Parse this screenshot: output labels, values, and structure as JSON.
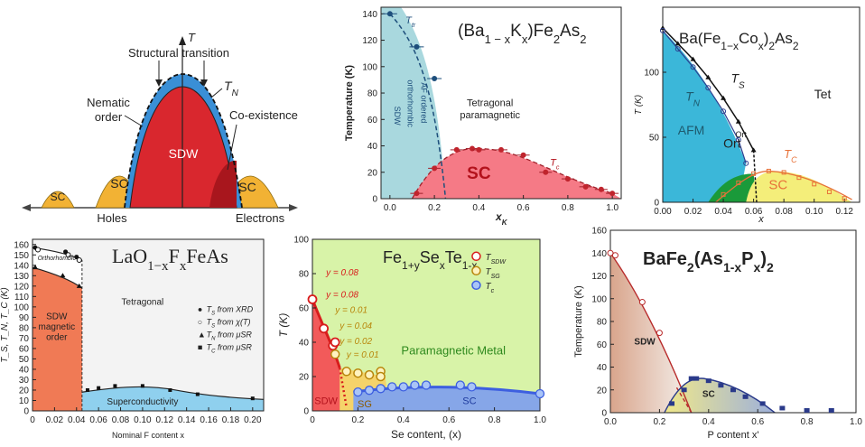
{
  "colors": {
    "sdw_red": "#d9272e",
    "afm_blue": "#3a8fd6",
    "sc_gold": "#f2b234",
    "teal": "#a9d8de",
    "pink": "#f57a86",
    "afm_cyan": "#3bb7d9",
    "ort_green": "#1a9a3a",
    "sc_yellow": "#f4ee7a",
    "orange_sdw": "#f07a55",
    "light_blue": "#8fd0ee",
    "para_green": "#d8f3a8",
    "sdw_tan": "#e8c7b0"
  },
  "chart_data": [
    {
      "id": "schematic",
      "type": "schematic",
      "labels": {
        "t_axis": "T",
        "structural": "Structural transition",
        "tn": "T",
        "tn_sub": "N",
        "nematic_1": "Nematic",
        "nematic_2": "order",
        "coexist": "Co-existence",
        "sdw": "SDW",
        "sc_center_left": "SC",
        "sc_center_right": "SC",
        "sc_far_left": "SC",
        "sc_far_right": "SC",
        "holes": "Holes",
        "electrons": "Electrons"
      }
    },
    {
      "id": "ba_k",
      "type": "scatter",
      "title": "(Ba",
      "title_sub1": "1 − x",
      "title_mid": "K",
      "title_sub2": "x",
      "title_end": ")Fe",
      "title_sub3": "2",
      "title_end2": "As",
      "title_sub4": "2",
      "xlabel": "x",
      "xlabel_sub": "K",
      "ylabel": "Temperature (K)",
      "xlim": [
        0,
        1.0
      ],
      "ylim": [
        0,
        145
      ],
      "xticks": [
        "0.0",
        "0.2",
        "0.4",
        "0.6",
        "0.8",
        "1.0"
      ],
      "yticks": [
        "0",
        "20",
        "40",
        "60",
        "80",
        "100",
        "120",
        "140"
      ],
      "series": [
        {
          "name": "Ttr",
          "x": [
            0.0,
            0.12,
            0.2
          ],
          "y": [
            140,
            115,
            91
          ]
        },
        {
          "name": "Tc",
          "x": [
            0.12,
            0.2,
            0.3,
            0.37,
            0.4,
            0.5,
            0.6,
            0.7,
            0.8,
            0.88,
            0.95,
            1.0
          ],
          "y": [
            4,
            23,
            37,
            38,
            37,
            37,
            33,
            20,
            15,
            9,
            7,
            4
          ]
        }
      ],
      "labels": {
        "ttr": "T",
        "ttr_sub": "tr",
        "region_1": "SDW",
        "region_2": "orthorhombic",
        "region_3": "AF ordered",
        "tetra_1": "Tetragonal",
        "tetra_2": "paramagnetic",
        "sc": "SC",
        "tc": "T",
        "tc_sub": "c"
      }
    },
    {
      "id": "ba_co",
      "type": "scatter",
      "title": "Ba(Fe",
      "title_sub1": "1−x",
      "title_mid": "Co",
      "title_sub2": "x",
      "title_end": ")",
      "title_sub3": "2",
      "title_end2": "As",
      "title_sub4": "2",
      "xlabel": "x",
      "ylabel": "T (K)",
      "xlim": [
        0,
        0.13
      ],
      "ylim": [
        0,
        150
      ],
      "xticks": [
        "0.00",
        "0.02",
        "0.04",
        "0.06",
        "0.08",
        "0.10",
        "0.12"
      ],
      "yticks": [
        "0",
        "50",
        "100"
      ],
      "series": [
        {
          "name": "TS",
          "x": [
            0.0,
            0.01,
            0.02,
            0.03,
            0.04,
            0.05,
            0.06
          ],
          "y": [
            134,
            122,
            110,
            96,
            80,
            62,
            40
          ]
        },
        {
          "name": "TN",
          "x": [
            0.0,
            0.01,
            0.02,
            0.03,
            0.04,
            0.05,
            0.055
          ],
          "y": [
            132,
            118,
            104,
            88,
            70,
            48,
            30
          ]
        },
        {
          "name": "TC",
          "x": [
            0.04,
            0.05,
            0.06,
            0.07,
            0.08,
            0.09,
            0.1,
            0.11,
            0.12
          ],
          "y": [
            6,
            15,
            22,
            24,
            23,
            19,
            14,
            8,
            3
          ]
        }
      ],
      "labels": {
        "ts": "T",
        "ts_sub": "S",
        "tn": "T",
        "tn_sub": "N",
        "tet": "Tet",
        "afm": "AFM",
        "ort": "Ort",
        "ort_small": "Ort",
        "tc": "T",
        "tc_sub": "C",
        "sc": "SC"
      }
    },
    {
      "id": "lao",
      "type": "scatter",
      "title": "LaO",
      "title_sub1": "1−x",
      "title_mid": "F",
      "title_sub2": "x",
      "title_end": "FeAs",
      "xlabel": "Nominal F content x",
      "ylabel": "T_S, T_N, T_C (K)",
      "xlim": [
        0,
        0.21
      ],
      "ylim": [
        0,
        165
      ],
      "xticks": [
        "0",
        "0.02",
        "0.04",
        "0.06",
        "0.08",
        "0.10",
        "0.12",
        "0.14",
        "0.16",
        "0.18",
        "0.20"
      ],
      "yticks": [
        "0",
        "10",
        "20",
        "30",
        "40",
        "50",
        "60",
        "70",
        "80",
        "90",
        "100",
        "110",
        "120",
        "130",
        "140",
        "150",
        "160"
      ],
      "series": [
        {
          "name": "TS_XRD",
          "x": [
            0.0,
            0.03,
            0.04
          ],
          "y": [
            157,
            153,
            148
          ]
        },
        {
          "name": "TS_chi",
          "x": [
            0.0,
            0.03,
            0.04
          ],
          "y": [
            155,
            150,
            145
          ]
        },
        {
          "name": "TN_muSR",
          "x": [
            0.0,
            0.025,
            0.04
          ],
          "y": [
            138,
            130,
            120
          ]
        },
        {
          "name": "TC_muSR",
          "x": [
            0.05,
            0.06,
            0.075,
            0.1,
            0.125,
            0.15,
            0.2
          ],
          "y": [
            20,
            22,
            24,
            24,
            20,
            16,
            12
          ]
        }
      ],
      "labels": {
        "ortho": "Orthorhombic",
        "sdw_1": "SDW",
        "sdw_2": "magnetic",
        "sdw_3": "order",
        "tetragonal": "Tetragonal",
        "superconductivity": "Superconductivity",
        "legend": [
          {
            "symbol": "●",
            "text_a": "T",
            "sub": "S",
            "text_b": " from XRD"
          },
          {
            "symbol": "○",
            "text_a": "T",
            "sub": "S",
            "text_b": " from χ(T)"
          },
          {
            "symbol": "▲",
            "text_a": "T",
            "sub": "N",
            "text_b": " from μSR"
          },
          {
            "symbol": "■",
            "text_a": "T",
            "sub": "C",
            "text_b": " from μSR"
          }
        ]
      }
    },
    {
      "id": "fe_se_te",
      "type": "scatter",
      "title": "Fe",
      "title_sub1": "1+y",
      "title_mid": "Se",
      "title_sub2": "x",
      "title_end": "Te",
      "title_sub3": "1-x",
      "xlabel": "Se content, (x)",
      "ylabel": "T (K)",
      "xlim": [
        0,
        1.0
      ],
      "ylim": [
        0,
        100
      ],
      "xticks": [
        "0",
        "0.2",
        "0.4",
        "0.6",
        "0.8",
        "1.0"
      ],
      "yticks": [
        "0",
        "20",
        "40",
        "60",
        "80",
        "100"
      ],
      "series": [
        {
          "name": "TSDW",
          "x": [
            0.0,
            0.05,
            0.09,
            0.1
          ],
          "y": [
            65,
            48,
            38,
            40
          ]
        },
        {
          "name": "TSG",
          "x": [
            0.1,
            0.15,
            0.2,
            0.25,
            0.3,
            0.3
          ],
          "y": [
            33,
            23,
            22,
            21,
            23,
            20
          ]
        },
        {
          "name": "Tc",
          "x": [
            0.2,
            0.25,
            0.3,
            0.35,
            0.4,
            0.45,
            0.5,
            0.65,
            0.7,
            1.0
          ],
          "y": [
            11,
            12,
            13,
            14,
            14,
            15,
            15,
            15,
            14,
            10
          ]
        }
      ],
      "labels": {
        "y1": "y = 0.08",
        "y2": "y = 0.08",
        "y3": "y = 0.01",
        "y4": "y = 0.04",
        "y5": "y = 0.02",
        "y6": "y = 0.01",
        "para": "Paramagnetic Metal",
        "sdw": "SDW",
        "sg": "SG",
        "sc": "SC",
        "legend": [
          {
            "text_a": "T",
            "sub": "SDW"
          },
          {
            "text_a": "T",
            "sub": "SG"
          },
          {
            "text_a": "T",
            "sub": "c"
          }
        ]
      }
    },
    {
      "id": "bafe_p",
      "type": "scatter",
      "title": "BaFe",
      "title_sub1": "2",
      "title_mid": "(As",
      "title_sub2": "1-x",
      "title_end": "P",
      "title_sub3": "x",
      "title_end2": ")",
      "title_sub4": "2",
      "xlabel": "P content x'",
      "ylabel": "Temperature (K)",
      "xlim": [
        0,
        1.0
      ],
      "ylim": [
        0,
        160
      ],
      "xticks": [
        "0.0",
        "0.2",
        "0.4",
        "0.6",
        "0.8",
        "1.0"
      ],
      "yticks": [
        "0",
        "20",
        "40",
        "60",
        "80",
        "100",
        "120",
        "140",
        "160"
      ],
      "series": [
        {
          "name": "TN",
          "x": [
            0.0,
            0.02,
            0.13,
            0.2
          ],
          "y": [
            140,
            138,
            97,
            70
          ]
        },
        {
          "name": "Tc",
          "x": [
            0.25,
            0.3,
            0.33,
            0.35,
            0.4,
            0.45,
            0.5,
            0.55,
            0.62,
            0.7,
            0.8,
            0.9
          ],
          "y": [
            8,
            20,
            30,
            30,
            28,
            24,
            20,
            14,
            8,
            4,
            2,
            2
          ]
        }
      ],
      "labels": {
        "sdw": "SDW",
        "sc": "SC"
      }
    }
  ]
}
